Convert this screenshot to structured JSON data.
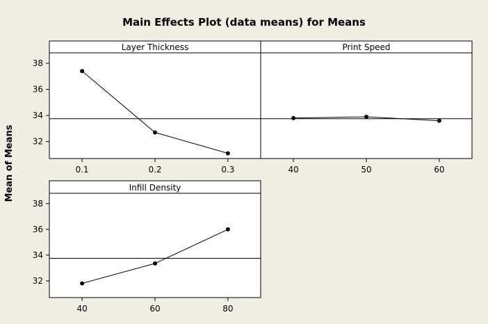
{
  "chart_data": {
    "type": "line",
    "title": "Main Effects Plot (data means) for Means",
    "ylabel": "Mean of Means",
    "ylim": [
      30.7,
      38.8
    ],
    "yticks": [
      32,
      34,
      36,
      38
    ],
    "grand_mean": 33.75,
    "colors": {
      "background": "#f0ede3",
      "plot": "#ffffff",
      "line": "#000000"
    },
    "panels": [
      {
        "name": "Layer Thickness",
        "x": [
          0.1,
          0.2,
          0.3
        ],
        "tick_labels": [
          "0.1",
          "0.2",
          "0.3"
        ],
        "values": [
          37.4,
          32.7,
          31.1
        ]
      },
      {
        "name": "Print Speed",
        "x": [
          40,
          50,
          60
        ],
        "tick_labels": [
          "40",
          "50",
          "60"
        ],
        "values": [
          33.8,
          33.9,
          33.6
        ]
      },
      {
        "name": "Infill Density",
        "x": [
          40,
          60,
          80
        ],
        "tick_labels": [
          "40",
          "60",
          "80"
        ],
        "values": [
          31.8,
          33.35,
          36.0
        ]
      }
    ]
  }
}
